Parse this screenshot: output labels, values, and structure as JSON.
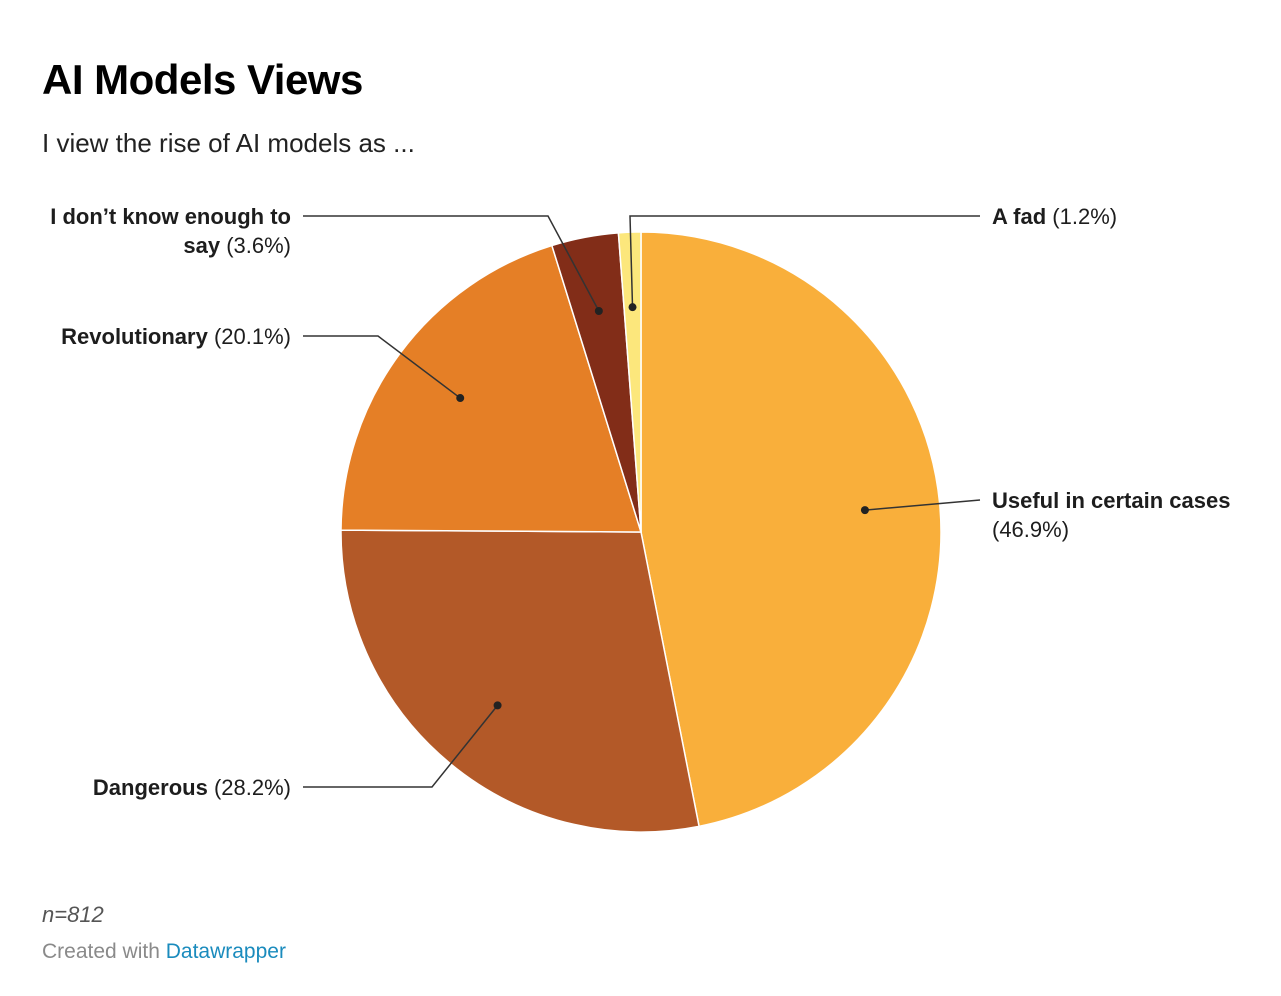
{
  "header": {
    "title": "AI Models Views",
    "subtitle": "I view the rise of AI models as ..."
  },
  "chart_data": {
    "type": "pie",
    "title": "AI Models Views",
    "subtitle": "I view the rise of AI models as ...",
    "slices": [
      {
        "name": "Useful in certain cases",
        "value": 46.9,
        "pct_label": "(46.9%)",
        "color": "#F9AF3B"
      },
      {
        "name": "Dangerous",
        "value": 28.2,
        "pct_label": "(28.2%)",
        "color": "#B35928"
      },
      {
        "name": "Revolutionary",
        "value": 20.1,
        "pct_label": "(20.1%)",
        "color": "#E57F26"
      },
      {
        "name": "I don’t know enough to say",
        "value": 3.6,
        "pct_label": "(3.6%)",
        "color": "#822D18"
      },
      {
        "name": "A fad",
        "value": 1.2,
        "pct_label": "(1.2%)",
        "color": "#FCE77C"
      }
    ]
  },
  "footer": {
    "note": "n=812",
    "credit_prefix": "Created with",
    "credit_link": "Datawrapper"
  }
}
